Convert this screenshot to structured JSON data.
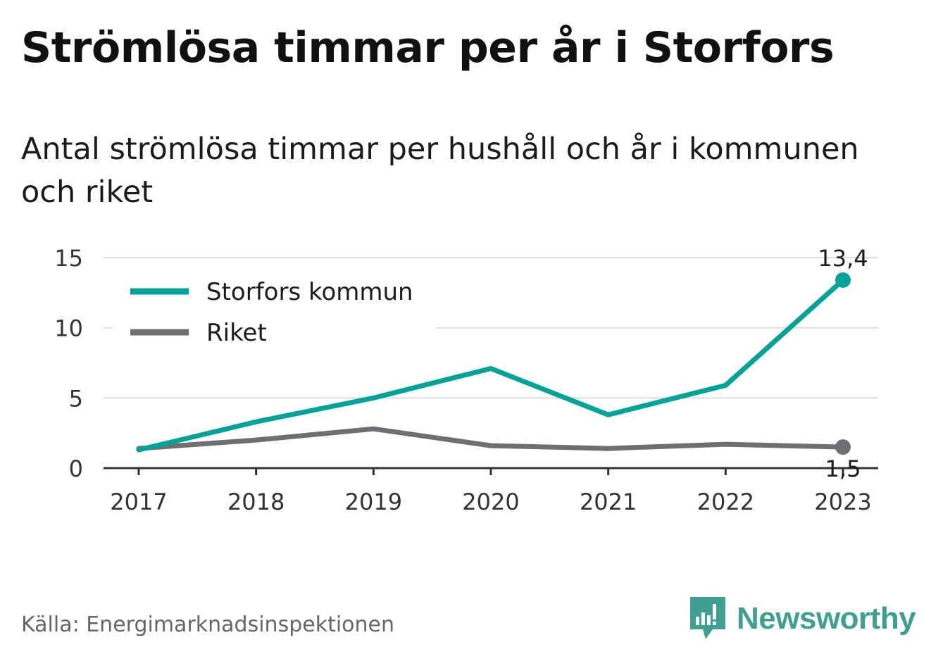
{
  "header": {
    "title": "Strömlösa timmar per år i Storfors",
    "subtitle": "Antal strömlösa timmar per hushåll och år i kommunen och riket"
  },
  "footer": {
    "source": "Källa: Energimarknadsinspektionen",
    "brand": "Newsworthy",
    "brand_icon": "newsworthy-logo-icon"
  },
  "chart_data": {
    "type": "line",
    "title": "Strömlösa timmar per år i Storfors",
    "subtitle": "Antal strömlösa timmar per hushåll och år i kommunen och riket",
    "categories": [
      "2017",
      "2018",
      "2019",
      "2020",
      "2021",
      "2022",
      "2023"
    ],
    "y_ticks": [
      0,
      5,
      10,
      15
    ],
    "ylim": [
      0,
      15
    ],
    "grid": true,
    "legend": "top-left",
    "series": [
      {
        "name": "Storfors kommun",
        "color": "#00a396",
        "values": [
          1.3,
          3.3,
          5.0,
          7.1,
          3.8,
          5.9,
          13.4
        ],
        "end_label": "13,4"
      },
      {
        "name": "Riket",
        "color": "#6e6e73",
        "values": [
          1.4,
          2.0,
          2.8,
          1.6,
          1.4,
          1.7,
          1.5
        ],
        "end_label": "1,5"
      }
    ]
  }
}
